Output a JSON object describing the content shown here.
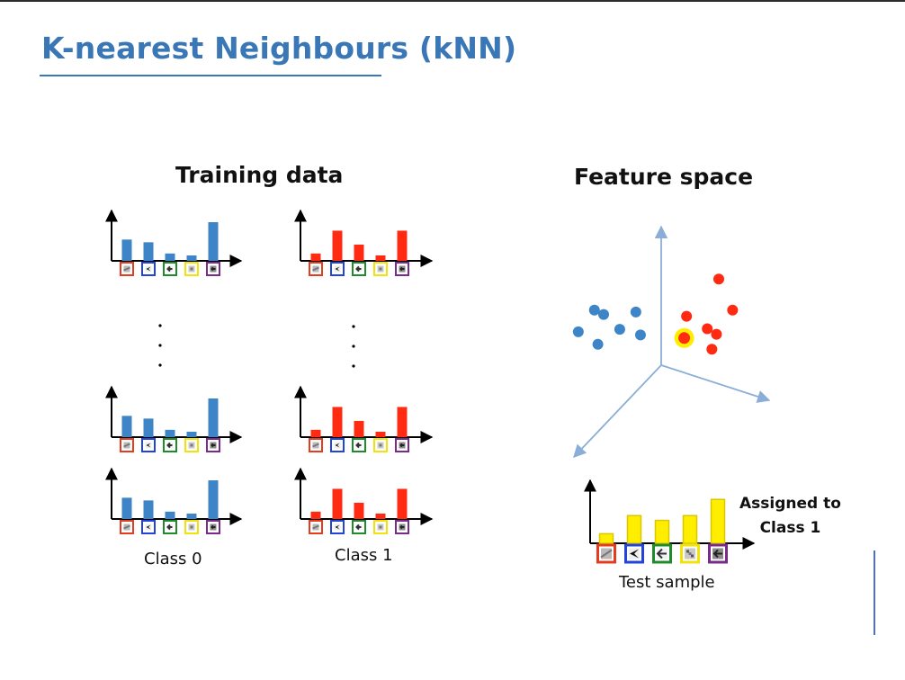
{
  "slide": {
    "title": "K-nearest Neighbours (kNN)",
    "training_heading": "Training data",
    "feature_heading": "Feature space",
    "class0_label": "Class 0",
    "class1_label": "Class 1",
    "assigned_line1": "Assigned to",
    "assigned_line2": "Class 1",
    "test_label": "Test sample"
  },
  "colors": {
    "title": "#3a77b6",
    "class0": "#3d85c6",
    "class1": "#ff2a12",
    "test": "#ffee00",
    "axis": "#8aaed8",
    "word_boxes": [
      "#e53b1f",
      "#2244dd",
      "#1e8c2a",
      "#f2e20c",
      "#7a2a8a"
    ]
  },
  "icons": [
    "bicycle-part-icon",
    "airplane-icon",
    "plant-icon",
    "texture-icon",
    "animal-icon"
  ],
  "histograms": {
    "class0": [
      [
        0.55,
        0.48,
        0.19,
        0.14,
        1.0
      ],
      [
        0.55,
        0.48,
        0.19,
        0.14,
        1.0
      ],
      [
        0.55,
        0.48,
        0.19,
        0.14,
        1.0
      ]
    ],
    "class1": [
      [
        0.19,
        0.78,
        0.42,
        0.14,
        0.78
      ],
      [
        0.19,
        0.78,
        0.42,
        0.14,
        0.78
      ],
      [
        0.19,
        0.78,
        0.42,
        0.14,
        0.78
      ]
    ],
    "test": [
      0.2,
      0.58,
      0.48,
      0.58,
      0.92
    ]
  },
  "feature_points": {
    "class0": [
      [
        -0.58,
        0.25
      ],
      [
        -0.5,
        0.18
      ],
      [
        -0.22,
        0.22
      ],
      [
        -0.72,
        -0.1
      ],
      [
        -0.36,
        -0.06
      ],
      [
        -0.55,
        -0.3
      ],
      [
        -0.18,
        -0.15
      ]
    ],
    "class1": [
      [
        0.5,
        0.75
      ],
      [
        0.62,
        0.25
      ],
      [
        0.22,
        0.15
      ],
      [
        0.4,
        -0.05
      ],
      [
        0.48,
        -0.14
      ],
      [
        0.44,
        -0.38
      ]
    ],
    "test": [
      0.2,
      -0.2
    ]
  }
}
